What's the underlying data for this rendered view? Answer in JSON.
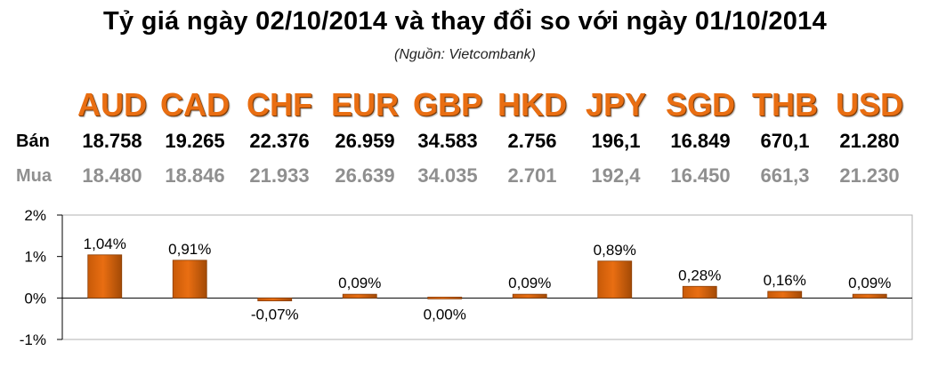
{
  "title": "Tỷ giá ngày 02/10/2014 và thay đổi so với ngày 01/10/2014",
  "source": "(Nguồn: Vietcombank)",
  "row_labels": {
    "sell": "Bán",
    "buy": "Mua"
  },
  "currencies": [
    "AUD",
    "CAD",
    "CHF",
    "EUR",
    "GBP",
    "HKD",
    "JPY",
    "SGD",
    "THB",
    "USD"
  ],
  "sell": [
    "18.758",
    "19.265",
    "22.376",
    "26.959",
    "34.583",
    "2.756",
    "196,1",
    "16.849",
    "670,1",
    "21.280"
  ],
  "buy": [
    "18.480",
    "18.846",
    "21.933",
    "26.639",
    "34.035",
    "2.701",
    "192,4",
    "16.450",
    "661,3",
    "21.230"
  ],
  "colors": {
    "accent": "#e96e12",
    "bar_dark": "#a34a06",
    "buy_text": "#8f8f8f"
  },
  "chart_data": {
    "type": "bar",
    "categories": [
      "AUD",
      "CAD",
      "CHF",
      "EUR",
      "GBP",
      "HKD",
      "JPY",
      "SGD",
      "THB",
      "USD"
    ],
    "values": [
      1.04,
      0.91,
      -0.07,
      0.09,
      0.0,
      0.09,
      0.89,
      0.28,
      0.16,
      0.09
    ],
    "data_labels": [
      "1,04%",
      "0,91%",
      "-0,07%",
      "0,09%",
      "0,00%",
      "0,09%",
      "0,89%",
      "0,28%",
      "0,16%",
      "0,09%"
    ],
    "yticks": [
      2,
      1,
      0,
      -1
    ],
    "ytick_labels": [
      "2%",
      "1%",
      "0%",
      "-1%"
    ],
    "ylim": [
      -1,
      2
    ],
    "grid": false,
    "legend": "none"
  }
}
